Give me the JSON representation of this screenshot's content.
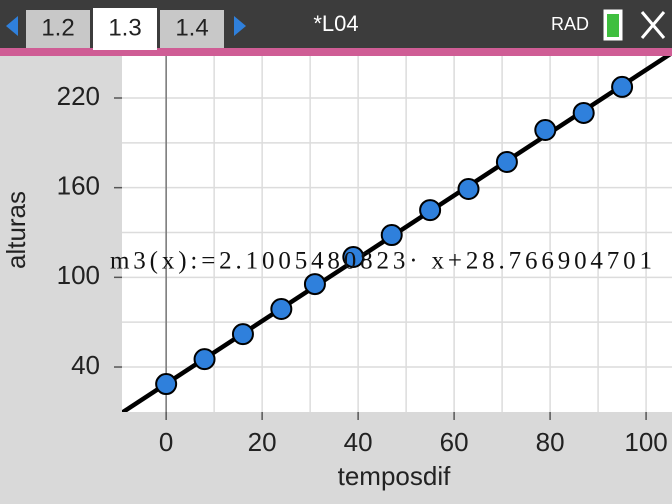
{
  "tabs": [
    "1.2",
    "1.3",
    "1.4"
  ],
  "active_tab": 1,
  "document_title": "*L04",
  "mode": "RAD",
  "chart_data": {
    "type": "scatter",
    "x_label": "temposdif",
    "y_label": "alturas",
    "series": [
      {
        "color": "#2f80dc",
        "x": [
          0,
          8,
          16,
          24,
          31,
          39,
          47,
          55,
          63,
          71,
          79,
          87,
          95
        ],
        "values": [
          28.6,
          45.3,
          62.0,
          78.8,
          95.5,
          113.6,
          128.3,
          145.0,
          159.1,
          177.2,
          198.6,
          210.0,
          227.4
        ]
      }
    ],
    "fit": {
      "label": "m3(x):=2.1005480823· x+28.766904701",
      "slope": 2.1005480823,
      "intercept": 28.766904701,
      "color": "#000000"
    },
    "xlim": [
      -9.2,
      105.4
    ],
    "ylim": [
      9.9,
      248.1
    ],
    "xticks": [
      0,
      20,
      40,
      60,
      80,
      100
    ],
    "yticks": [
      40,
      100,
      160,
      220
    ],
    "x_minor_ticks": [
      10,
      30,
      50,
      70,
      90
    ],
    "y_minor_ticks": [
      70,
      130,
      190
    ],
    "grid": true
  }
}
